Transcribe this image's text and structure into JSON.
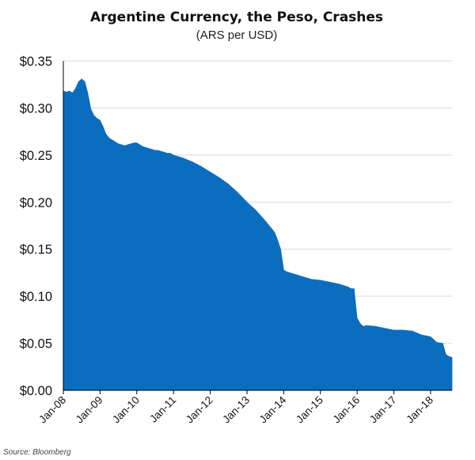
{
  "chart_data": {
    "type": "area",
    "title": "Argentine Currency, the Peso, Crashes",
    "subtitle": "(ARS per USD)",
    "source": "Source: Bloomberg",
    "xlabel": "",
    "ylabel": "",
    "ylim": [
      0,
      0.35
    ],
    "y_ticks": [
      0.0,
      0.05,
      0.1,
      0.15,
      0.2,
      0.25,
      0.3,
      0.35
    ],
    "y_tick_labels": [
      "$0.00",
      "$0.05",
      "$0.10",
      "$0.15",
      "$0.20",
      "$0.25",
      "$0.30",
      "$0.35"
    ],
    "x_range": [
      "2008-01",
      "2018-08"
    ],
    "x_tick_labels": [
      "Jan-08",
      "Jan-09",
      "Jan-10",
      "Jan-11",
      "Jan-12",
      "Jan-13",
      "Jan-14",
      "Jan-15",
      "Jan-16",
      "Jan-17",
      "Jan-18"
    ],
    "grid": "horizontal",
    "legend": "none",
    "fill_color": "#0B6DBE",
    "series": [
      {
        "x": [
          "2008-01",
          "2008-02",
          "2008-03",
          "2008-04",
          "2008-05",
          "2008-06",
          "2008-07",
          "2008-08",
          "2008-09",
          "2008-10",
          "2008-11",
          "2008-12",
          "2009-01",
          "2009-02",
          "2009-03",
          "2009-04",
          "2009-05",
          "2009-06",
          "2009-07",
          "2009-08",
          "2009-09",
          "2009-10",
          "2009-11",
          "2009-12",
          "2010-01",
          "2010-02",
          "2010-03",
          "2010-04",
          "2010-05",
          "2010-06",
          "2010-07",
          "2010-08",
          "2010-09",
          "2010-10",
          "2010-11",
          "2010-12",
          "2011-01",
          "2011-04",
          "2011-07",
          "2011-10",
          "2012-01",
          "2012-04",
          "2012-07",
          "2012-10",
          "2013-01",
          "2013-04",
          "2013-07",
          "2013-10",
          "2013-11",
          "2013-12",
          "2014-01",
          "2014-02",
          "2014-04",
          "2014-07",
          "2014-10",
          "2015-01",
          "2015-04",
          "2015-07",
          "2015-10",
          "2015-11",
          "2015-12",
          "2016-01",
          "2016-02",
          "2016-03",
          "2016-04",
          "2016-07",
          "2016-10",
          "2017-01",
          "2017-04",
          "2017-07",
          "2017-10",
          "2018-01",
          "2018-03",
          "2018-05",
          "2018-06",
          "2018-07",
          "2018-08"
        ],
        "values": [
          0.318,
          0.317,
          0.318,
          0.316,
          0.321,
          0.328,
          0.331,
          0.328,
          0.316,
          0.299,
          0.292,
          0.289,
          0.287,
          0.28,
          0.272,
          0.268,
          0.266,
          0.264,
          0.262,
          0.261,
          0.26,
          0.261,
          0.262,
          0.263,
          0.263,
          0.261,
          0.259,
          0.258,
          0.257,
          0.256,
          0.255,
          0.255,
          0.254,
          0.253,
          0.252,
          0.252,
          0.25,
          0.247,
          0.243,
          0.238,
          0.232,
          0.226,
          0.219,
          0.21,
          0.2,
          0.191,
          0.18,
          0.168,
          0.16,
          0.15,
          0.128,
          0.126,
          0.124,
          0.121,
          0.118,
          0.117,
          0.115,
          0.113,
          0.11,
          0.108,
          0.108,
          0.077,
          0.071,
          0.068,
          0.069,
          0.068,
          0.066,
          0.064,
          0.064,
          0.063,
          0.059,
          0.057,
          0.051,
          0.05,
          0.038,
          0.036,
          0.035
        ]
      }
    ]
  }
}
